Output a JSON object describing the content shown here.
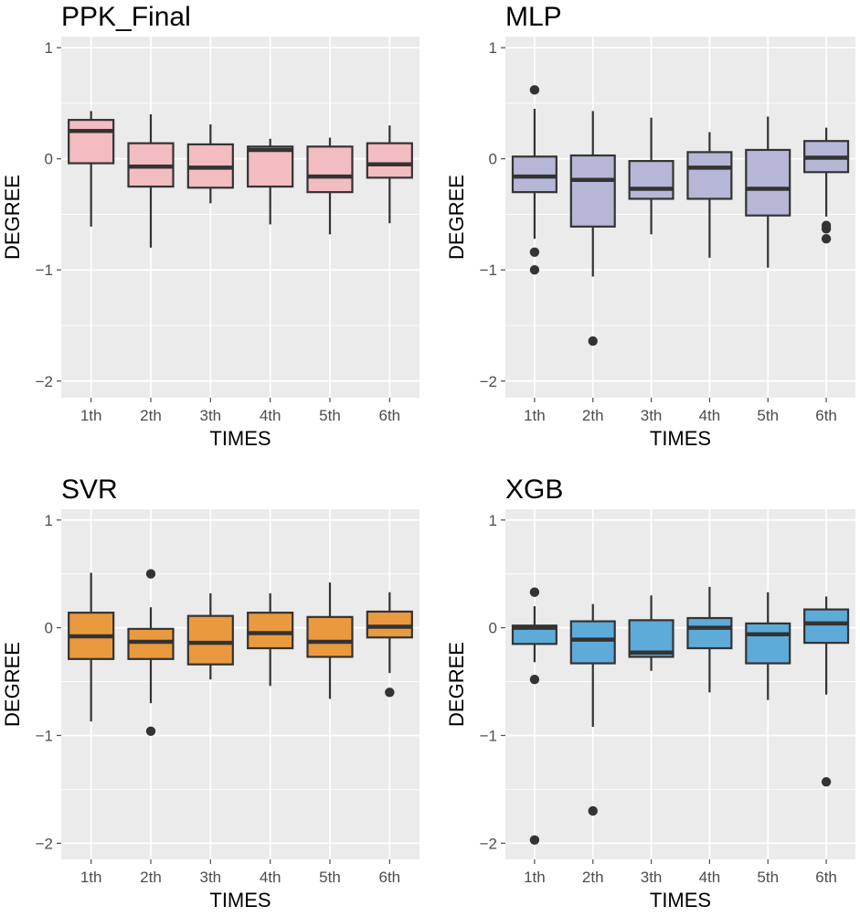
{
  "chart_data": [
    {
      "type": "boxplot",
      "title": "PPK_Final",
      "xlabel": "TIMES",
      "ylabel": "DEGREE",
      "ylim": [
        -2.15,
        1.1
      ],
      "yticks": [
        1,
        0,
        -1,
        -2
      ],
      "ytick_labels": [
        "1",
        "0",
        "−1",
        "−2"
      ],
      "fill": "#f2bcc0",
      "categories": [
        "1th",
        "2th",
        "3th",
        "4th",
        "5th",
        "6th"
      ],
      "boxes": [
        {
          "lower_whisker": -0.61,
          "q1": -0.04,
          "median": 0.25,
          "q3": 0.35,
          "upper_whisker": 0.43,
          "outliers": []
        },
        {
          "lower_whisker": -0.8,
          "q1": -0.25,
          "median": -0.07,
          "q3": 0.14,
          "upper_whisker": 0.4,
          "outliers": []
        },
        {
          "lower_whisker": -0.4,
          "q1": -0.26,
          "median": -0.08,
          "q3": 0.13,
          "upper_whisker": 0.31,
          "outliers": []
        },
        {
          "lower_whisker": -0.59,
          "q1": -0.25,
          "median": 0.08,
          "q3": 0.11,
          "upper_whisker": 0.18,
          "outliers": []
        },
        {
          "lower_whisker": -0.68,
          "q1": -0.3,
          "median": -0.16,
          "q3": 0.11,
          "upper_whisker": 0.19,
          "outliers": []
        },
        {
          "lower_whisker": -0.58,
          "q1": -0.17,
          "median": -0.05,
          "q3": 0.14,
          "upper_whisker": 0.3,
          "outliers": []
        }
      ]
    },
    {
      "type": "boxplot",
      "title": "MLP",
      "xlabel": "TIMES",
      "ylabel": "DEGREE",
      "ylim": [
        -2.15,
        1.1
      ],
      "yticks": [
        1,
        0,
        -1,
        -2
      ],
      "ytick_labels": [
        "1",
        "0",
        "−1",
        "−2"
      ],
      "fill": "#b6b7d6",
      "categories": [
        "1th",
        "2th",
        "3th",
        "4th",
        "5th",
        "6th"
      ],
      "boxes": [
        {
          "lower_whisker": -0.72,
          "q1": -0.3,
          "median": -0.16,
          "q3": 0.02,
          "upper_whisker": 0.45,
          "outliers": [
            0.62,
            -0.84,
            -1.0
          ]
        },
        {
          "lower_whisker": -1.06,
          "q1": -0.61,
          "median": -0.19,
          "q3": 0.03,
          "upper_whisker": 0.43,
          "outliers": [
            -1.64
          ]
        },
        {
          "lower_whisker": -0.68,
          "q1": -0.36,
          "median": -0.27,
          "q3": -0.02,
          "upper_whisker": 0.37,
          "outliers": []
        },
        {
          "lower_whisker": -0.89,
          "q1": -0.36,
          "median": -0.08,
          "q3": 0.06,
          "upper_whisker": 0.24,
          "outliers": []
        },
        {
          "lower_whisker": -0.98,
          "q1": -0.51,
          "median": -0.27,
          "q3": 0.08,
          "upper_whisker": 0.38,
          "outliers": []
        },
        {
          "lower_whisker": -0.52,
          "q1": -0.12,
          "median": 0.01,
          "q3": 0.16,
          "upper_whisker": 0.28,
          "outliers": [
            -0.6,
            -0.63,
            -0.72
          ]
        }
      ]
    },
    {
      "type": "boxplot",
      "title": "SVR",
      "xlabel": "TIMES",
      "ylabel": "DEGREE",
      "ylim": [
        -2.15,
        1.1
      ],
      "yticks": [
        1,
        0,
        -1,
        -2
      ],
      "ytick_labels": [
        "1",
        "0",
        "−1",
        "−2"
      ],
      "fill": "#e99a3e",
      "categories": [
        "1th",
        "2th",
        "3th",
        "4th",
        "5th",
        "6th"
      ],
      "boxes": [
        {
          "lower_whisker": -0.87,
          "q1": -0.29,
          "median": -0.08,
          "q3": 0.14,
          "upper_whisker": 0.51,
          "outliers": []
        },
        {
          "lower_whisker": -0.7,
          "q1": -0.29,
          "median": -0.13,
          "q3": -0.01,
          "upper_whisker": 0.19,
          "outliers": [
            0.5,
            -0.96
          ]
        },
        {
          "lower_whisker": -0.48,
          "q1": -0.34,
          "median": -0.14,
          "q3": 0.11,
          "upper_whisker": 0.32,
          "outliers": []
        },
        {
          "lower_whisker": -0.54,
          "q1": -0.19,
          "median": -0.05,
          "q3": 0.14,
          "upper_whisker": 0.32,
          "outliers": []
        },
        {
          "lower_whisker": -0.66,
          "q1": -0.27,
          "median": -0.13,
          "q3": 0.1,
          "upper_whisker": 0.42,
          "outliers": []
        },
        {
          "lower_whisker": -0.42,
          "q1": -0.09,
          "median": 0.01,
          "q3": 0.15,
          "upper_whisker": 0.33,
          "outliers": [
            -0.6
          ]
        }
      ]
    },
    {
      "type": "boxplot",
      "title": "XGB",
      "xlabel": "TIMES",
      "ylabel": "DEGREE",
      "ylim": [
        -2.15,
        1.1
      ],
      "yticks": [
        1,
        0,
        -1,
        -2
      ],
      "ytick_labels": [
        "1",
        "0",
        "−1",
        "−2"
      ],
      "fill": "#5eaad9",
      "categories": [
        "1th",
        "2th",
        "3th",
        "4th",
        "5th",
        "6th"
      ],
      "boxes": [
        {
          "lower_whisker": -0.32,
          "q1": -0.15,
          "median": 0.0,
          "q3": 0.02,
          "upper_whisker": 0.2,
          "outliers": [
            0.33,
            -0.48,
            -1.97
          ]
        },
        {
          "lower_whisker": -0.92,
          "q1": -0.33,
          "median": -0.11,
          "q3": 0.06,
          "upper_whisker": 0.22,
          "outliers": [
            -1.7
          ]
        },
        {
          "lower_whisker": -0.4,
          "q1": -0.27,
          "median": -0.23,
          "q3": 0.07,
          "upper_whisker": 0.3,
          "outliers": []
        },
        {
          "lower_whisker": -0.6,
          "q1": -0.19,
          "median": 0.0,
          "q3": 0.09,
          "upper_whisker": 0.38,
          "outliers": []
        },
        {
          "lower_whisker": -0.67,
          "q1": -0.33,
          "median": -0.06,
          "q3": 0.04,
          "upper_whisker": 0.33,
          "outliers": []
        },
        {
          "lower_whisker": -0.62,
          "q1": -0.14,
          "median": 0.04,
          "q3": 0.17,
          "upper_whisker": 0.29,
          "outliers": [
            -1.43
          ]
        }
      ]
    }
  ]
}
